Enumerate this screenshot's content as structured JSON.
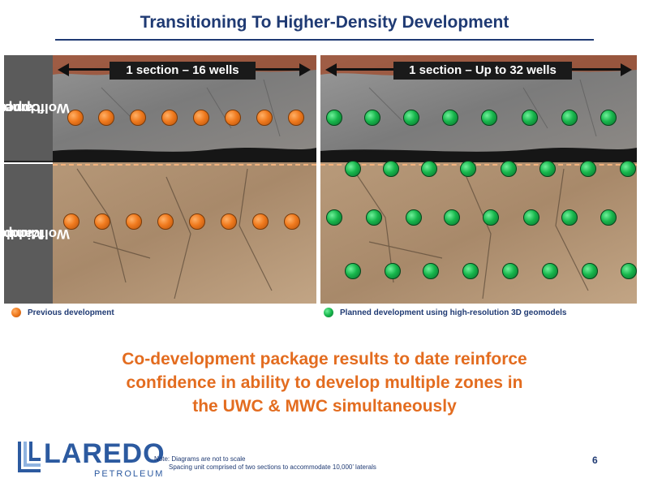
{
  "title": "Transitioning To Higher-Density Development",
  "left_panel": {
    "section_label": "1 section – 16 wells",
    "upper_wells_color": "orange",
    "middle_wells_color": "orange"
  },
  "right_panel": {
    "section_label": "1 section – Up to 32 wells",
    "wells_color": "green"
  },
  "zones": {
    "upper": [
      "Upper",
      "Wolfcamp"
    ],
    "middle": [
      "Middle",
      "Wolfcamp"
    ]
  },
  "legend": {
    "previous": "Previous development",
    "planned": "Planned development using high-resolution 3D geomodels"
  },
  "headline": [
    "Co-development package results to date reinforce",
    "confidence in ability to develop multiple zones in",
    "the UWC & MWC simultaneously"
  ],
  "logo": {
    "word": "LAREDO",
    "sub": "PETROLEUM"
  },
  "note": {
    "line1": "Note: Diagrams are not to scale",
    "line2": "Spacing unit comprised of two sections to accommodate 10,000’ laterals"
  },
  "page_number": "6",
  "colors": {
    "title": "#1f3a73",
    "headline": "#e36c1f",
    "previous_well": "#f07a1e",
    "planned_well": "#17b64c",
    "logo": "#2c5aa0"
  }
}
